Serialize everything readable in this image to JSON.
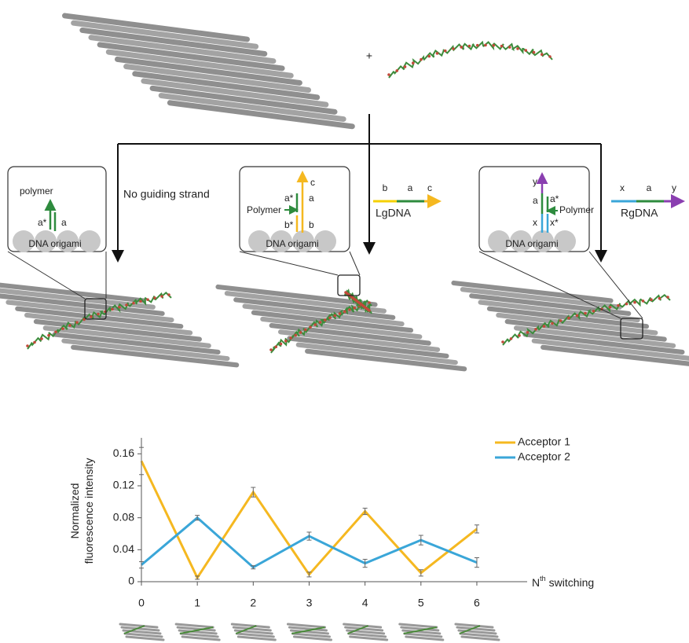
{
  "diagram": {
    "plus": "+",
    "no_guide": "No guiding strand",
    "lg_name": "LgDNA",
    "lg_parts": [
      "b",
      "a",
      "c"
    ],
    "rg_name": "RgDNA",
    "rg_parts": [
      "x",
      "a",
      "y"
    ],
    "inset1": {
      "polymer": "polymer",
      "a_star": "a*",
      "a": "a",
      "origami": "DNA origami"
    },
    "inset2": {
      "c": "c",
      "a_star": "a*",
      "a": "a",
      "polymer": "Polymer",
      "b_star": "b*",
      "b": "b",
      "origami": "DNA origami"
    },
    "inset3": {
      "y": "y",
      "a": "a",
      "a_star": "a*",
      "polymer": "Polymer",
      "x": "x",
      "x_star": "x*",
      "origami": "DNA origami"
    }
  },
  "chart_data": {
    "type": "line",
    "ylabel": [
      "Normalized",
      "fluorescence intensity"
    ],
    "xlabel": [
      "N",
      "th",
      "switching"
    ],
    "x": [
      0,
      1,
      2,
      3,
      4,
      5,
      6
    ],
    "xlim": [
      0,
      6.9
    ],
    "xticks": [
      0,
      1,
      2,
      3,
      4,
      5,
      6
    ],
    "ylim": [
      0,
      0.18
    ],
    "yticks": [
      0,
      0.04,
      0.08,
      0.12,
      0.16
    ],
    "series": [
      {
        "name": "Acceptor 1",
        "color": "#f5b820",
        "values": [
          0.151,
          0.005,
          0.112,
          0.009,
          0.088,
          0.011,
          0.066
        ],
        "errors": [
          0.017,
          0.002,
          0.006,
          0.003,
          0.004,
          0.004,
          0.005
        ]
      },
      {
        "name": "Acceptor 2",
        "color": "#3aa6d8",
        "values": [
          0.021,
          0.08,
          0.018,
          0.057,
          0.023,
          0.052,
          0.024
        ],
        "errors": [
          0.004,
          0.003,
          0.002,
          0.005,
          0.005,
          0.006,
          0.006
        ]
      }
    ]
  }
}
